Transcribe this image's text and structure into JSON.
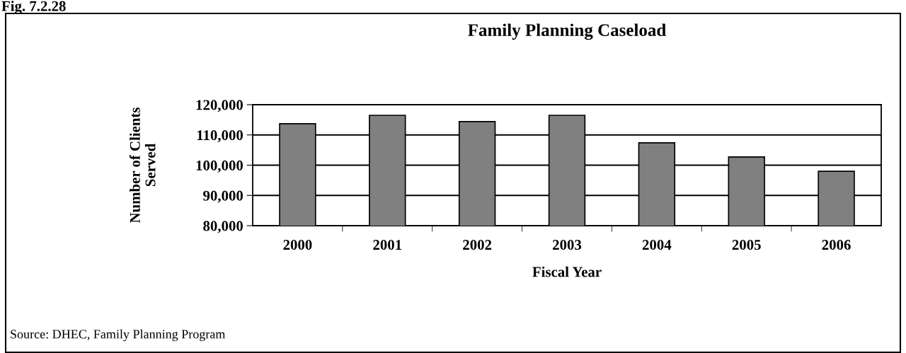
{
  "chart_data": {
    "type": "bar",
    "title": "Family Planning Caseload",
    "xlabel": "Fiscal Year",
    "ylabel": "Number of Clients\nServed",
    "categories": [
      "2000",
      "2001",
      "2002",
      "2003",
      "2004",
      "2005",
      "2006"
    ],
    "values": [
      113700,
      116500,
      114400,
      116500,
      107400,
      102700,
      98000
    ],
    "color": "#808080",
    "ylim": [
      80000,
      120000
    ],
    "yticks": [
      {
        "value": 80000,
        "label": "80,000"
      },
      {
        "value": 90000,
        "label": "90,000"
      },
      {
        "value": 100000,
        "label": "100,000"
      },
      {
        "value": 110000,
        "label": "110,000"
      },
      {
        "value": 120000,
        "label": "120,000"
      }
    ],
    "grid": "y",
    "annotations": [
      "Fig. 7.2.28",
      "Source: DHEC, Family Planning Program"
    ]
  }
}
